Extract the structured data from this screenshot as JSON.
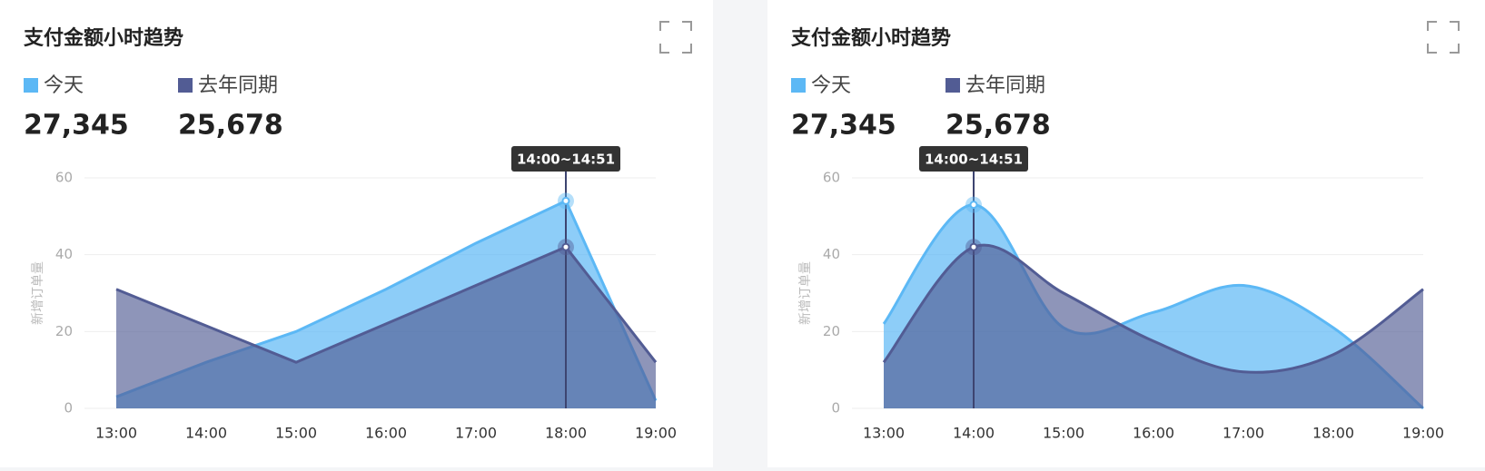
{
  "chart_data": [
    {
      "type": "area",
      "smooth": false,
      "title": "支付金额小时趋势",
      "y_label": "新增订单量",
      "summary": [
        {
          "name": "今天",
          "value": "27,345"
        },
        {
          "name": "去年同期",
          "value": "25,678"
        }
      ],
      "categories": [
        "13:00",
        "14:00",
        "15:00",
        "16:00",
        "17:00",
        "18:00",
        "19:00"
      ],
      "series": [
        {
          "name": "今天",
          "color": "#5cb8f5",
          "values": [
            3,
            12,
            20,
            31,
            43,
            54,
            2
          ]
        },
        {
          "name": "去年同期",
          "color": "#525c94",
          "values": [
            31,
            21.5,
            12,
            22,
            32,
            42,
            12
          ]
        }
      ],
      "ylim": [
        0,
        60
      ],
      "yticks": [
        0,
        20,
        40,
        60
      ],
      "grid": true,
      "tooltip": {
        "label": "14:00~14:51",
        "index": 5
      }
    },
    {
      "type": "area",
      "smooth": true,
      "title": "支付金额小时趋势",
      "y_label": "新增订单量",
      "summary": [
        {
          "name": "今天",
          "value": "27,345"
        },
        {
          "name": "去年同期",
          "value": "25,678"
        }
      ],
      "categories": [
        "13:00",
        "14:00",
        "15:00",
        "16:00",
        "17:00",
        "18:00",
        "19:00"
      ],
      "series": [
        {
          "name": "今天",
          "color": "#5cb8f5",
          "values": [
            22,
            53,
            21,
            25,
            32,
            21,
            0
          ]
        },
        {
          "name": "去年同期",
          "color": "#525c94",
          "values": [
            12,
            42,
            30,
            17.5,
            9.5,
            14,
            31
          ]
        }
      ],
      "ylim": [
        0,
        60
      ],
      "yticks": [
        0,
        20,
        40,
        60
      ],
      "grid": true,
      "tooltip": {
        "label": "14:00~14:51",
        "index": 1
      }
    }
  ]
}
